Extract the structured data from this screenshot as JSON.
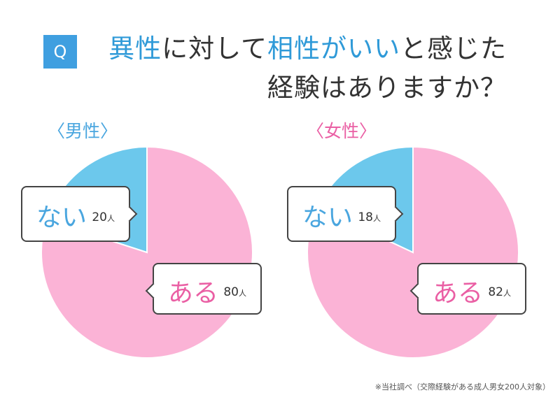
{
  "question": {
    "badge": "Q",
    "title_parts": [
      {
        "text": "異性",
        "hl": true
      },
      {
        "text": "に対して",
        "hl": false
      },
      {
        "text": "相性がいい",
        "hl": true
      },
      {
        "text": "と感じた",
        "hl": false
      }
    ],
    "line2": "経験はありますか？"
  },
  "colors": {
    "pink": "#fbb3d6",
    "blue": "#6cc8ec",
    "pink_text": "#ea5fa4",
    "blue_text": "#4aa6df"
  },
  "chart_data": [
    {
      "type": "pie",
      "title": "〈男性〉",
      "unit": "人",
      "slices": [
        {
          "label": "ある",
          "value": 80,
          "color": "#fbb3d6"
        },
        {
          "label": "ない",
          "value": 20,
          "color": "#6cc8ec"
        }
      ]
    },
    {
      "type": "pie",
      "title": "〈女性〉",
      "unit": "人",
      "slices": [
        {
          "label": "ある",
          "value": 82,
          "color": "#fbb3d6"
        },
        {
          "label": "ない",
          "value": 18,
          "color": "#6cc8ec"
        }
      ]
    }
  ],
  "footnote": "※当社調べ（交際経験がある成人男女200人対象）"
}
